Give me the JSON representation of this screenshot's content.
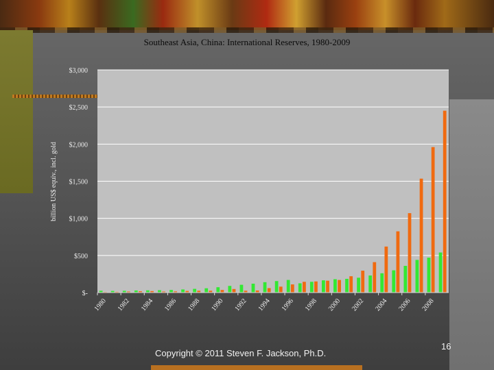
{
  "slide": {
    "footer": "Copyright © 2011 Steven F. Jackson, Ph.D.",
    "page_number": "16"
  },
  "colors": {
    "plot_background": "#c0c0c0",
    "series_southeast_asia": "#33e833",
    "series_china": "#f06a10",
    "gridline": "#ffffff"
  },
  "chart_data": {
    "type": "bar",
    "title": "Southeast Asia, China: International Reserves, 1980-2009",
    "ylabel": "billion US$ equiv., incl. gold",
    "xlabel": "",
    "ylim": [
      0,
      3000
    ],
    "yticks": [
      0,
      500,
      1000,
      1500,
      2000,
      2500,
      3000
    ],
    "ytick_labels": [
      "$-",
      "$500",
      "$1,000",
      "$1,500",
      "$2,000",
      "$2,500",
      "$3,000"
    ],
    "categories": [
      1980,
      1981,
      1982,
      1983,
      1984,
      1985,
      1986,
      1987,
      1988,
      1989,
      1990,
      1991,
      1992,
      1993,
      1994,
      1995,
      1996,
      1997,
      1998,
      1999,
      2000,
      2001,
      2002,
      2003,
      2004,
      2005,
      2006,
      2007,
      2008,
      2009
    ],
    "xtick_labels": [
      "1980",
      "1982",
      "1984",
      "1986",
      "1988",
      "1990",
      "1992",
      "1994",
      "1996",
      "1998",
      "2000",
      "2002",
      "2004",
      "2006",
      "2008"
    ],
    "grid": "horizontal",
    "series": [
      {
        "values": [
          25,
          22,
          24,
          28,
          30,
          32,
          35,
          42,
          50,
          58,
          72,
          90,
          105,
          120,
          140,
          155,
          170,
          125,
          145,
          165,
          180,
          185,
          200,
          230,
          260,
          300,
          360,
          440,
          470,
          540
        ]
      },
      {
        "values": [
          8,
          10,
          14,
          18,
          20,
          14,
          16,
          22,
          25,
          25,
          35,
          48,
          25,
          28,
          60,
          80,
          110,
          145,
          150,
          160,
          170,
          220,
          295,
          410,
          620,
          825,
          1070,
          1535,
          1960,
          2450
        ]
      }
    ]
  }
}
